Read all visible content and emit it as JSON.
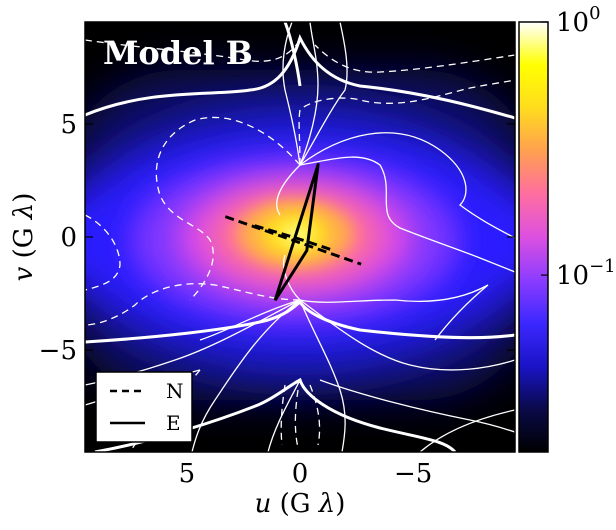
{
  "chart_data": {
    "type": "heatmap",
    "title": "Model B",
    "xlabel": "u (G λ)",
    "xlabel_parts": {
      "var": "u",
      "unit_open": " (G ",
      "unit_sym": "λ",
      "unit_close": ")"
    },
    "ylabel": "v (G λ)",
    "ylabel_parts": {
      "var": "v",
      "unit_open": " (G ",
      "unit_sym": "λ",
      "unit_close": ")"
    },
    "xlim": [
      9.5,
      -9.5
    ],
    "ylim": [
      -9.5,
      9.5
    ],
    "x_inverted": true,
    "x_ticks": [
      5,
      0,
      -5
    ],
    "x_tick_labels": [
      "5",
      "0",
      "−5"
    ],
    "y_ticks": [
      5,
      0,
      -5
    ],
    "y_tick_labels": [
      "5",
      "0",
      "−5"
    ],
    "colorbar": {
      "scale": "log",
      "range": [
        0.02,
        1.0
      ],
      "ticks": [
        {
          "value": 1.0,
          "base": "10",
          "exp": "0"
        },
        {
          "value": 0.1,
          "base": "10",
          "exp": "−1"
        }
      ]
    },
    "baselines": [
      {
        "name": "N",
        "style": "dashed",
        "color": "#000000",
        "points": [
          [
            3.3,
            0.9
          ],
          [
            -2.7,
            -1.2
          ]
        ]
      },
      {
        "name": "N",
        "style": "dashed",
        "color": "#000000",
        "points": [
          [
            2.0,
            0.5
          ],
          [
            0.0,
            -0.1
          ],
          [
            -1.5,
            -0.6
          ]
        ]
      },
      {
        "name": "E",
        "style": "solid",
        "color": "#000000",
        "points": [
          [
            1.1,
            -2.8
          ],
          [
            -0.8,
            3.2
          ],
          [
            -0.3,
            -0.6
          ],
          [
            1.1,
            -2.8
          ]
        ]
      }
    ],
    "legend": {
      "position": "bottom-left",
      "entries": [
        {
          "label": "N",
          "style": "dashed"
        },
        {
          "label": "E",
          "style": "solid"
        }
      ]
    },
    "colors": {
      "colormap": [
        "#000000",
        "#0a0a4a",
        "#1a14c8",
        "#3c28ff",
        "#8c3cff",
        "#dc50e0",
        "#ff6ea0",
        "#ffa050",
        "#ffdc1e",
        "#ffff00",
        "#ffffff"
      ],
      "contour_color": "#ffffff",
      "baseline_color": "#000000",
      "title_color": "#ffffff"
    }
  }
}
